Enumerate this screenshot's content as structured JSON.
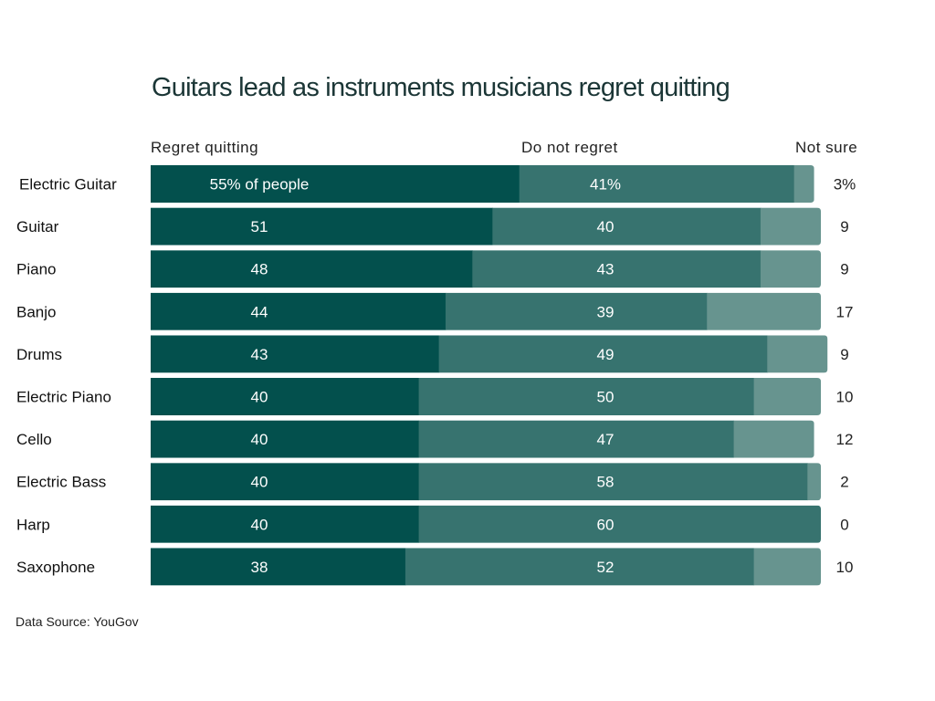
{
  "chart_data": {
    "type": "bar",
    "orientation": "horizontal",
    "stacked": true,
    "title": "Guitars lead as instruments musicians regret quitting",
    "categories": [
      "Electric Guitar",
      "Guitar",
      "Piano",
      "Banjo",
      "Drums",
      "Electric Piano",
      "Cello",
      "Electric Bass",
      "Harp",
      "Saxophone"
    ],
    "series": [
      {
        "name": "Regret quitting",
        "color": "#03504d",
        "values": [
          55,
          51,
          48,
          44,
          43,
          40,
          40,
          40,
          40,
          38
        ]
      },
      {
        "name": "Do not regret",
        "color": "#37736f",
        "values": [
          41,
          40,
          43,
          39,
          49,
          50,
          47,
          58,
          60,
          52
        ]
      },
      {
        "name": "Not sure",
        "color": "#67948f",
        "values": [
          3,
          9,
          9,
          17,
          9,
          10,
          12,
          2,
          0,
          10
        ]
      }
    ],
    "first_row_labels": [
      "55% of people",
      "41%",
      "3%"
    ],
    "xlim": [
      0,
      100
    ],
    "grid": false,
    "source": "Data Source: YouGov"
  }
}
